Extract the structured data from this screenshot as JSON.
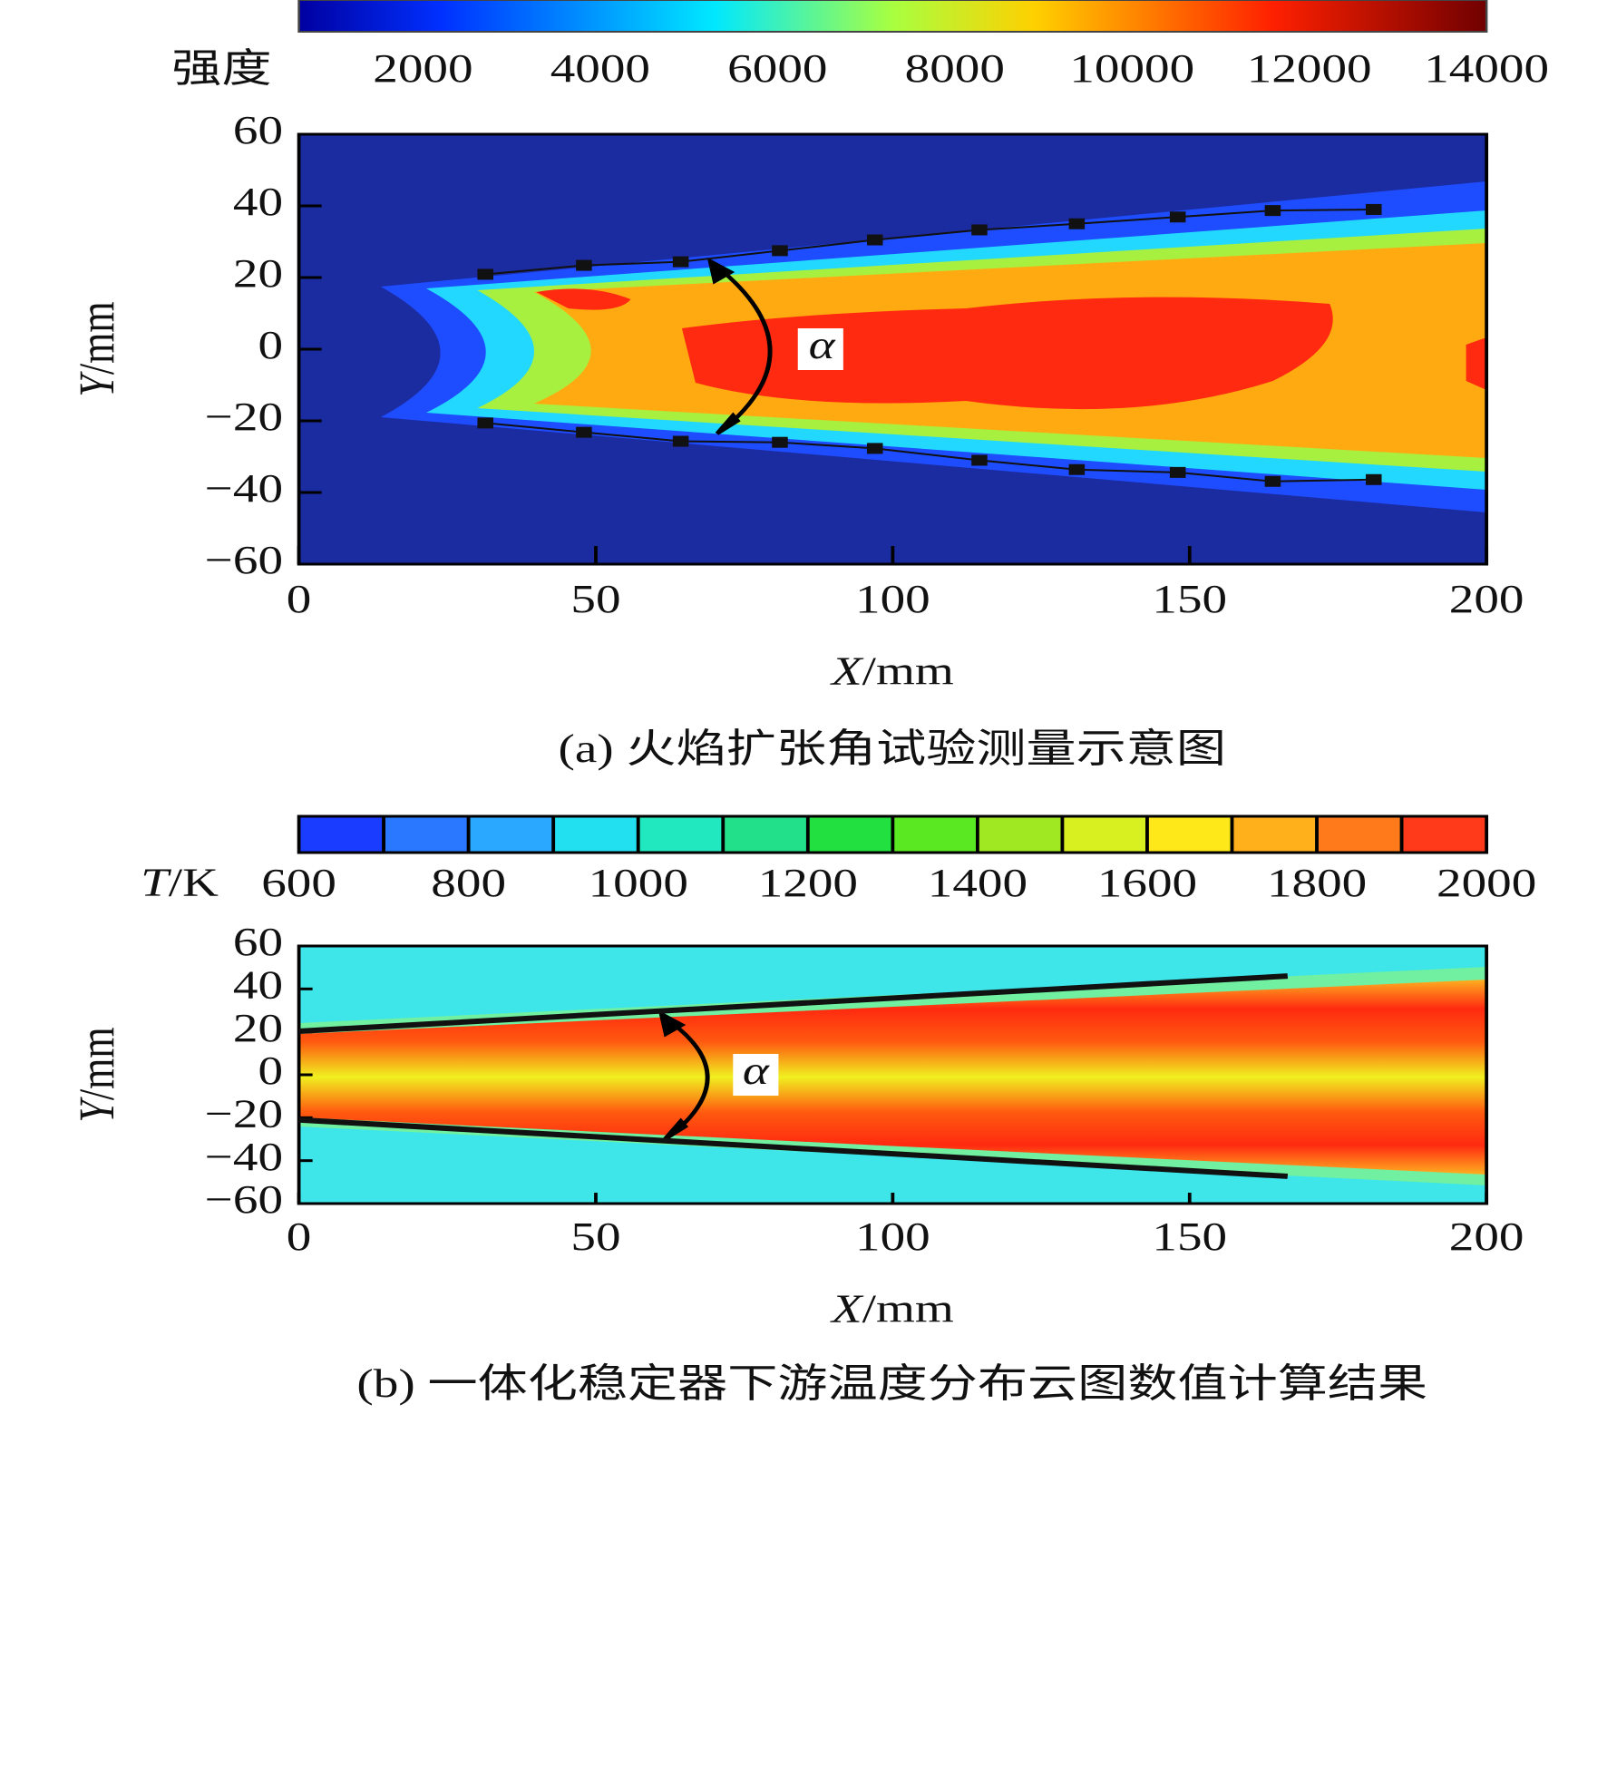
{
  "chart_data": [
    {
      "type": "contour",
      "colormap": "jet",
      "colorbar_label": "强度",
      "clim": [
        600,
        14000
      ],
      "colorbar_ticks": [
        2000,
        4000,
        6000,
        8000,
        10000,
        12000,
        14000
      ],
      "xlabel": "X/mm",
      "ylabel": "Y/mm",
      "xlim": [
        0,
        200
      ],
      "ylim": [
        -60,
        60
      ],
      "xticks": [
        0,
        50,
        100,
        150,
        200
      ],
      "yticks": [
        {
          "value": -60,
          "label": "−60"
        },
        {
          "value": -40,
          "label": "−40"
        },
        {
          "value": -20,
          "label": "−20"
        },
        0,
        20,
        40,
        60
      ],
      "annotation": "α",
      "caption": "(a) 火焰扩张角试验测量示意图",
      "markers": true,
      "series": [
        {
          "color": "#111111",
          "x": [
            31.4,
            48,
            64.3,
            81,
            97,
            114.6,
            131,
            148,
            164,
            181
          ],
          "values": [
            20.9,
            23.4,
            24.4,
            27.5,
            30.5,
            33.3,
            35,
            36.9,
            38.7,
            39
          ]
        },
        {
          "color": "#111111",
          "x": [
            31.4,
            48,
            64.3,
            81,
            97,
            114.6,
            131,
            148,
            164,
            181
          ],
          "values": [
            -20.6,
            -23.2,
            -25.7,
            -26,
            -27.7,
            -31,
            -33.6,
            -34.4,
            -36.9,
            -36.4
          ]
        }
      ]
    },
    {
      "type": "contour",
      "colormap": "discrete",
      "colorbar_label": "T/K",
      "clim": [
        600,
        2000
      ],
      "colorbar_ticks": [
        600,
        800,
        1000,
        1200,
        1400,
        1600,
        1800,
        2000
      ],
      "colorbar_colors": [
        "#1a3cff",
        "#2a78ff",
        "#2aa8ff",
        "#22e0f0",
        "#22e8c0",
        "#22e08a",
        "#22e040",
        "#5ae822",
        "#a0e822",
        "#d8f020",
        "#ffe81a",
        "#ffb01a",
        "#ff7a1a",
        "#ff3a1a"
      ],
      "xlabel": "X/mm",
      "ylabel": "Y/mm",
      "xlim": [
        0,
        200
      ],
      "ylim": [
        -60,
        60
      ],
      "xticks": [
        0,
        50,
        100,
        150,
        200
      ],
      "yticks": [
        {
          "value": -60,
          "label": "−60"
        },
        {
          "value": -40,
          "label": "−40"
        },
        {
          "value": -20,
          "label": "−20"
        },
        0,
        20,
        40,
        60
      ],
      "annotation": "α",
      "caption": "(b) 一体化稳定器下游温度分布云图数值计算结果",
      "markers": false,
      "series": [
        {
          "color": "#111111",
          "x": [
            0,
            166.5
          ],
          "values": [
            20.3,
            46
          ]
        },
        {
          "color": "#111111",
          "x": [
            0,
            166.5
          ],
          "values": [
            -21,
            -47.3
          ]
        }
      ]
    }
  ]
}
